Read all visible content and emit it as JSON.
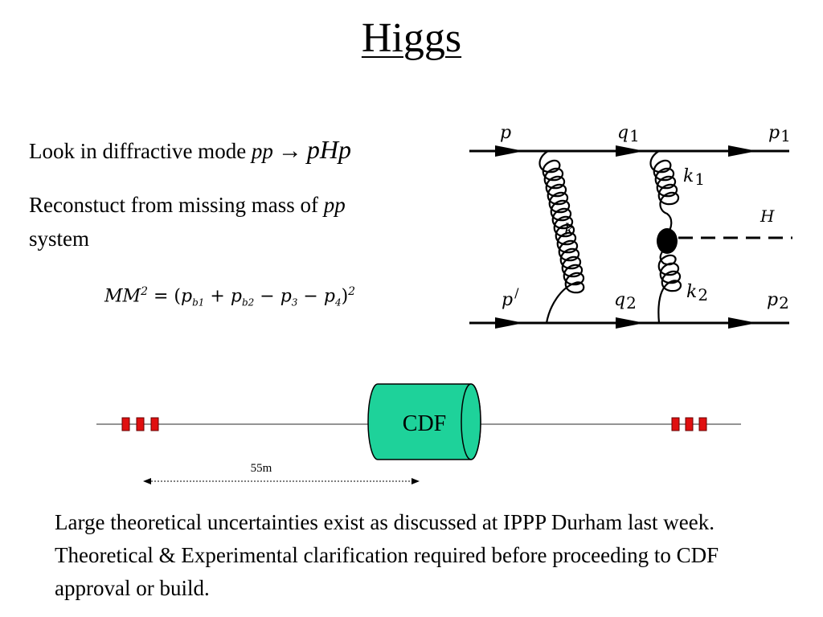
{
  "slide": {
    "title": "Higgs",
    "line1_text": "Look in diffractive mode ",
    "line1_pp": "pp",
    "line1_arrow": "→",
    "line1_result": "pHp",
    "line2_text": "Reconstuct from missing mass of ",
    "line2_pp": "pp",
    "line2_tail": "system",
    "formula": {
      "lhs": "MM",
      "lhs_exp": "2",
      "eq": " = (",
      "t1": "p",
      "t1_sub": "b1",
      "plus": " + ",
      "t2": "p",
      "t2_sub": "b2",
      "minus1": " − ",
      "t3": "p",
      "t3_sub": "3",
      "minus2": " − ",
      "t4": "p",
      "t4_sub": "4",
      "close": ")",
      "close_exp": "2"
    },
    "bottom_text": "Large theoretical uncertainties exist as discussed at IPPP Durham last week.  Theoretical & Experimental clarification required before proceeding to CDF approval or build."
  },
  "feynman": {
    "p": "p",
    "p_prime": "p",
    "prime": "/",
    "q1": "q",
    "q1_sub": "1",
    "q2": "q",
    "q2_sub": "2",
    "p1": "p",
    "p1_sub": "1",
    "p2": "p",
    "p2_sub": "2",
    "k": "k",
    "k1": "k",
    "k1_sub": "1",
    "k2": "k",
    "k2_sub": "2",
    "H": "H"
  },
  "detector": {
    "label": "CDF",
    "distance": "55m",
    "colors": {
      "detector": "#1ed29a",
      "station": "#e01010"
    }
  }
}
